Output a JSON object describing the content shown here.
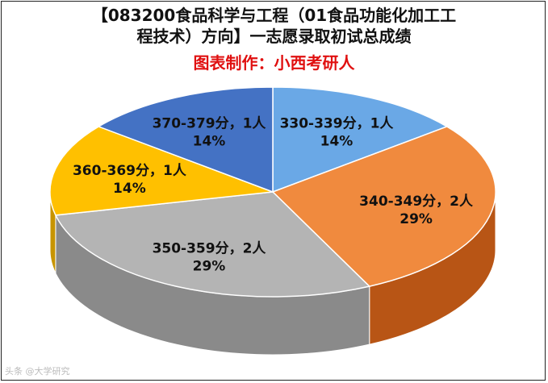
{
  "title": {
    "line1": "【083200食品科学与工程（01食品功能化加工工",
    "line2": "程技术）方向】一志愿录取初试总成绩"
  },
  "credit": "图表制作：小西考研人",
  "watermark": "头条 @大学研究",
  "chart_data": {
    "type": "pie",
    "title": "【083200食品科学与工程（01食品功能化加工工程技术）方向】一志愿录取初试总成绩",
    "subtitle": "图表制作：小西考研人",
    "categories": [
      "330-339分",
      "340-349分",
      "350-359分",
      "360-369分",
      "370-379分"
    ],
    "values": [
      1,
      2,
      2,
      1,
      1
    ],
    "percent_labels": [
      "14%",
      "29%",
      "29%",
      "14%",
      "14%"
    ],
    "value_labels": [
      "1人",
      "2人",
      "2人",
      "1人",
      "1人"
    ],
    "colors": [
      "#6aa8e6",
      "#f08a3e",
      "#b4b4b4",
      "#ffc000",
      "#4472c4"
    ],
    "side_colors": [
      "#3f78b4",
      "#b85515",
      "#8a8a8a",
      "#c79400",
      "#2c5496"
    ],
    "style": "3d",
    "legend": "none"
  }
}
